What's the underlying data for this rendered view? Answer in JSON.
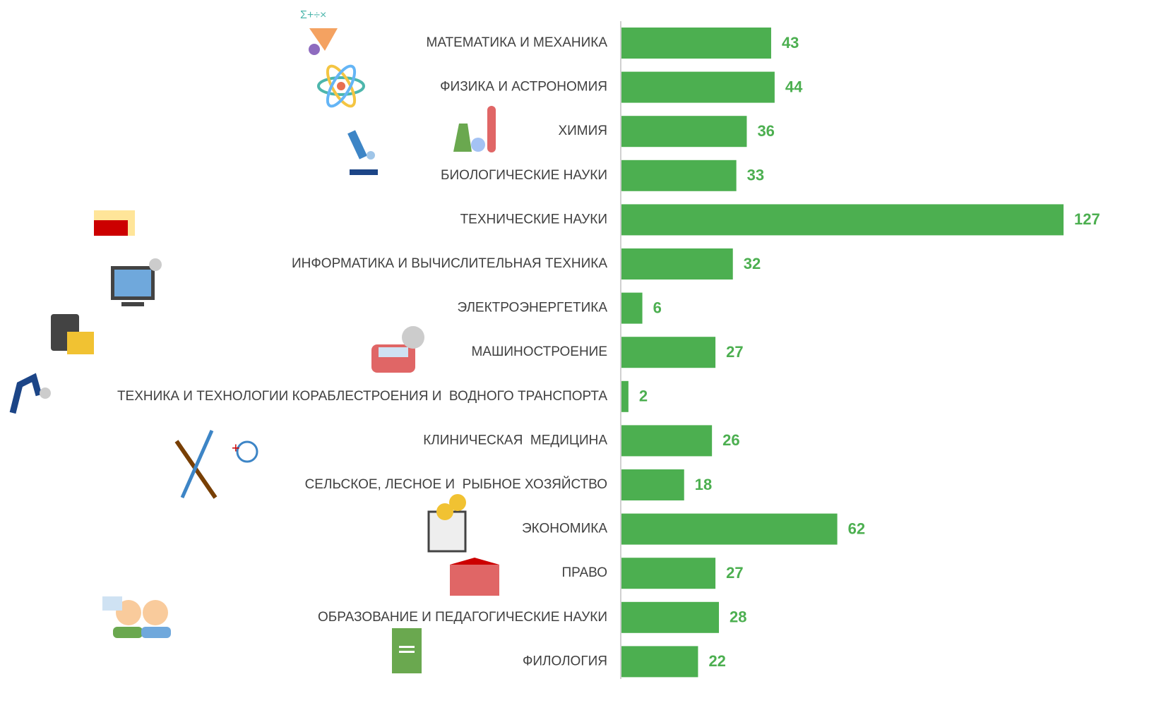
{
  "chart_data": {
    "type": "hbar",
    "color": "#4caf50",
    "categories": [
      "МАТЕМАТИКА И МЕХАНИКА",
      "ФИЗИКА И АСТРОНОМИЯ",
      "ХИМИЯ",
      "БИОЛОГИЧЕСКИЕ НАУКИ",
      "ТЕХНИЧЕСКИЕ НАУКИ",
      "ИНФОРМАТИКА И ВЫЧИСЛИТЕЛЬНАЯ ТЕХНИКА",
      "ЭЛЕКТРОЭНЕРГЕТИКА",
      "МАШИНОСТРОЕНИЕ",
      "ТЕХНИКА И ТЕХНОЛОГИИ КОРАБЛЕСТРОЕНИЯ И  ВОДНОГО ТРАНСПОРТА",
      "КЛИНИЧЕСКАЯ  МЕДИЦИНА",
      "СЕЛЬСКОЕ, ЛЕСНОЕ И  РЫБНОЕ ХОЗЯЙСТВО",
      "ЭКОНОМИКА",
      "ПРАВО",
      "ОБРАЗОВАНИЕ И ПЕДАГОГИЧЕСКИЕ НАУКИ",
      "ФИЛОЛОГИЯ"
    ],
    "values": [
      43,
      44,
      36,
      33,
      127,
      32,
      6,
      27,
      2,
      26,
      18,
      62,
      27,
      28,
      22
    ]
  }
}
